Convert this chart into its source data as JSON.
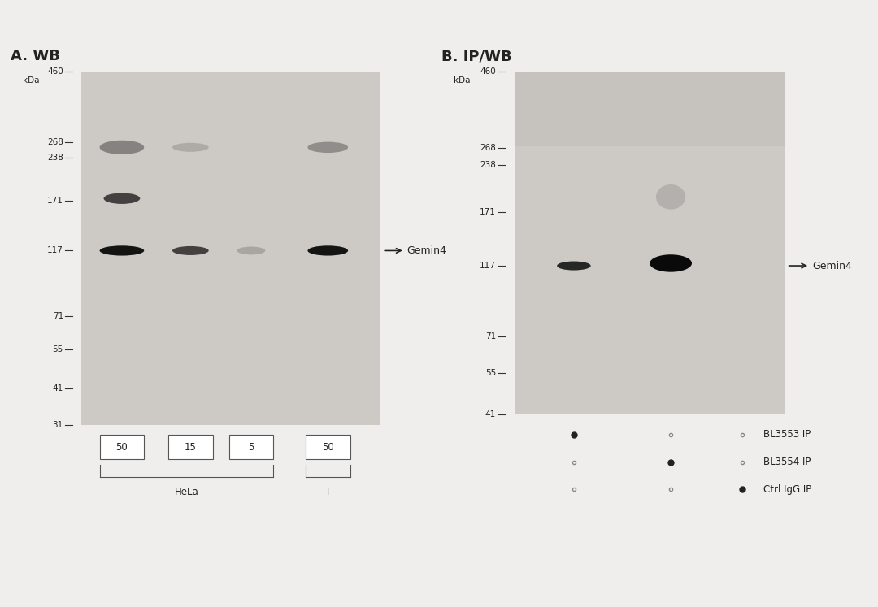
{
  "panel_A_title": "A. WB",
  "panel_B_title": "B. IP/WB",
  "bg_color_gel": "#d8d4d0",
  "bg_color_page": "#f0eeec",
  "marker_labels": [
    "460",
    "268",
    "238",
    "171",
    "117",
    "71",
    "55",
    "41",
    "31"
  ],
  "marker_positions": [
    460,
    268,
    238,
    171,
    117,
    71,
    55,
    41,
    31
  ],
  "gemin4_label": "Gemin4",
  "panel_A_lane_labels": [
    "50",
    "15",
    "5",
    "50"
  ],
  "panel_A_group_labels": [
    "HeLa",
    "T"
  ],
  "panel_B_dot_labels": [
    "BL3553 IP",
    "BL3554 IP",
    "Ctrl IgG IP"
  ],
  "panel_B_dots": [
    [
      "+",
      "-",
      "-"
    ],
    [
      "-",
      "+",
      "-"
    ],
    [
      "-",
      "-",
      "+"
    ]
  ],
  "kDa_label": "kDa"
}
